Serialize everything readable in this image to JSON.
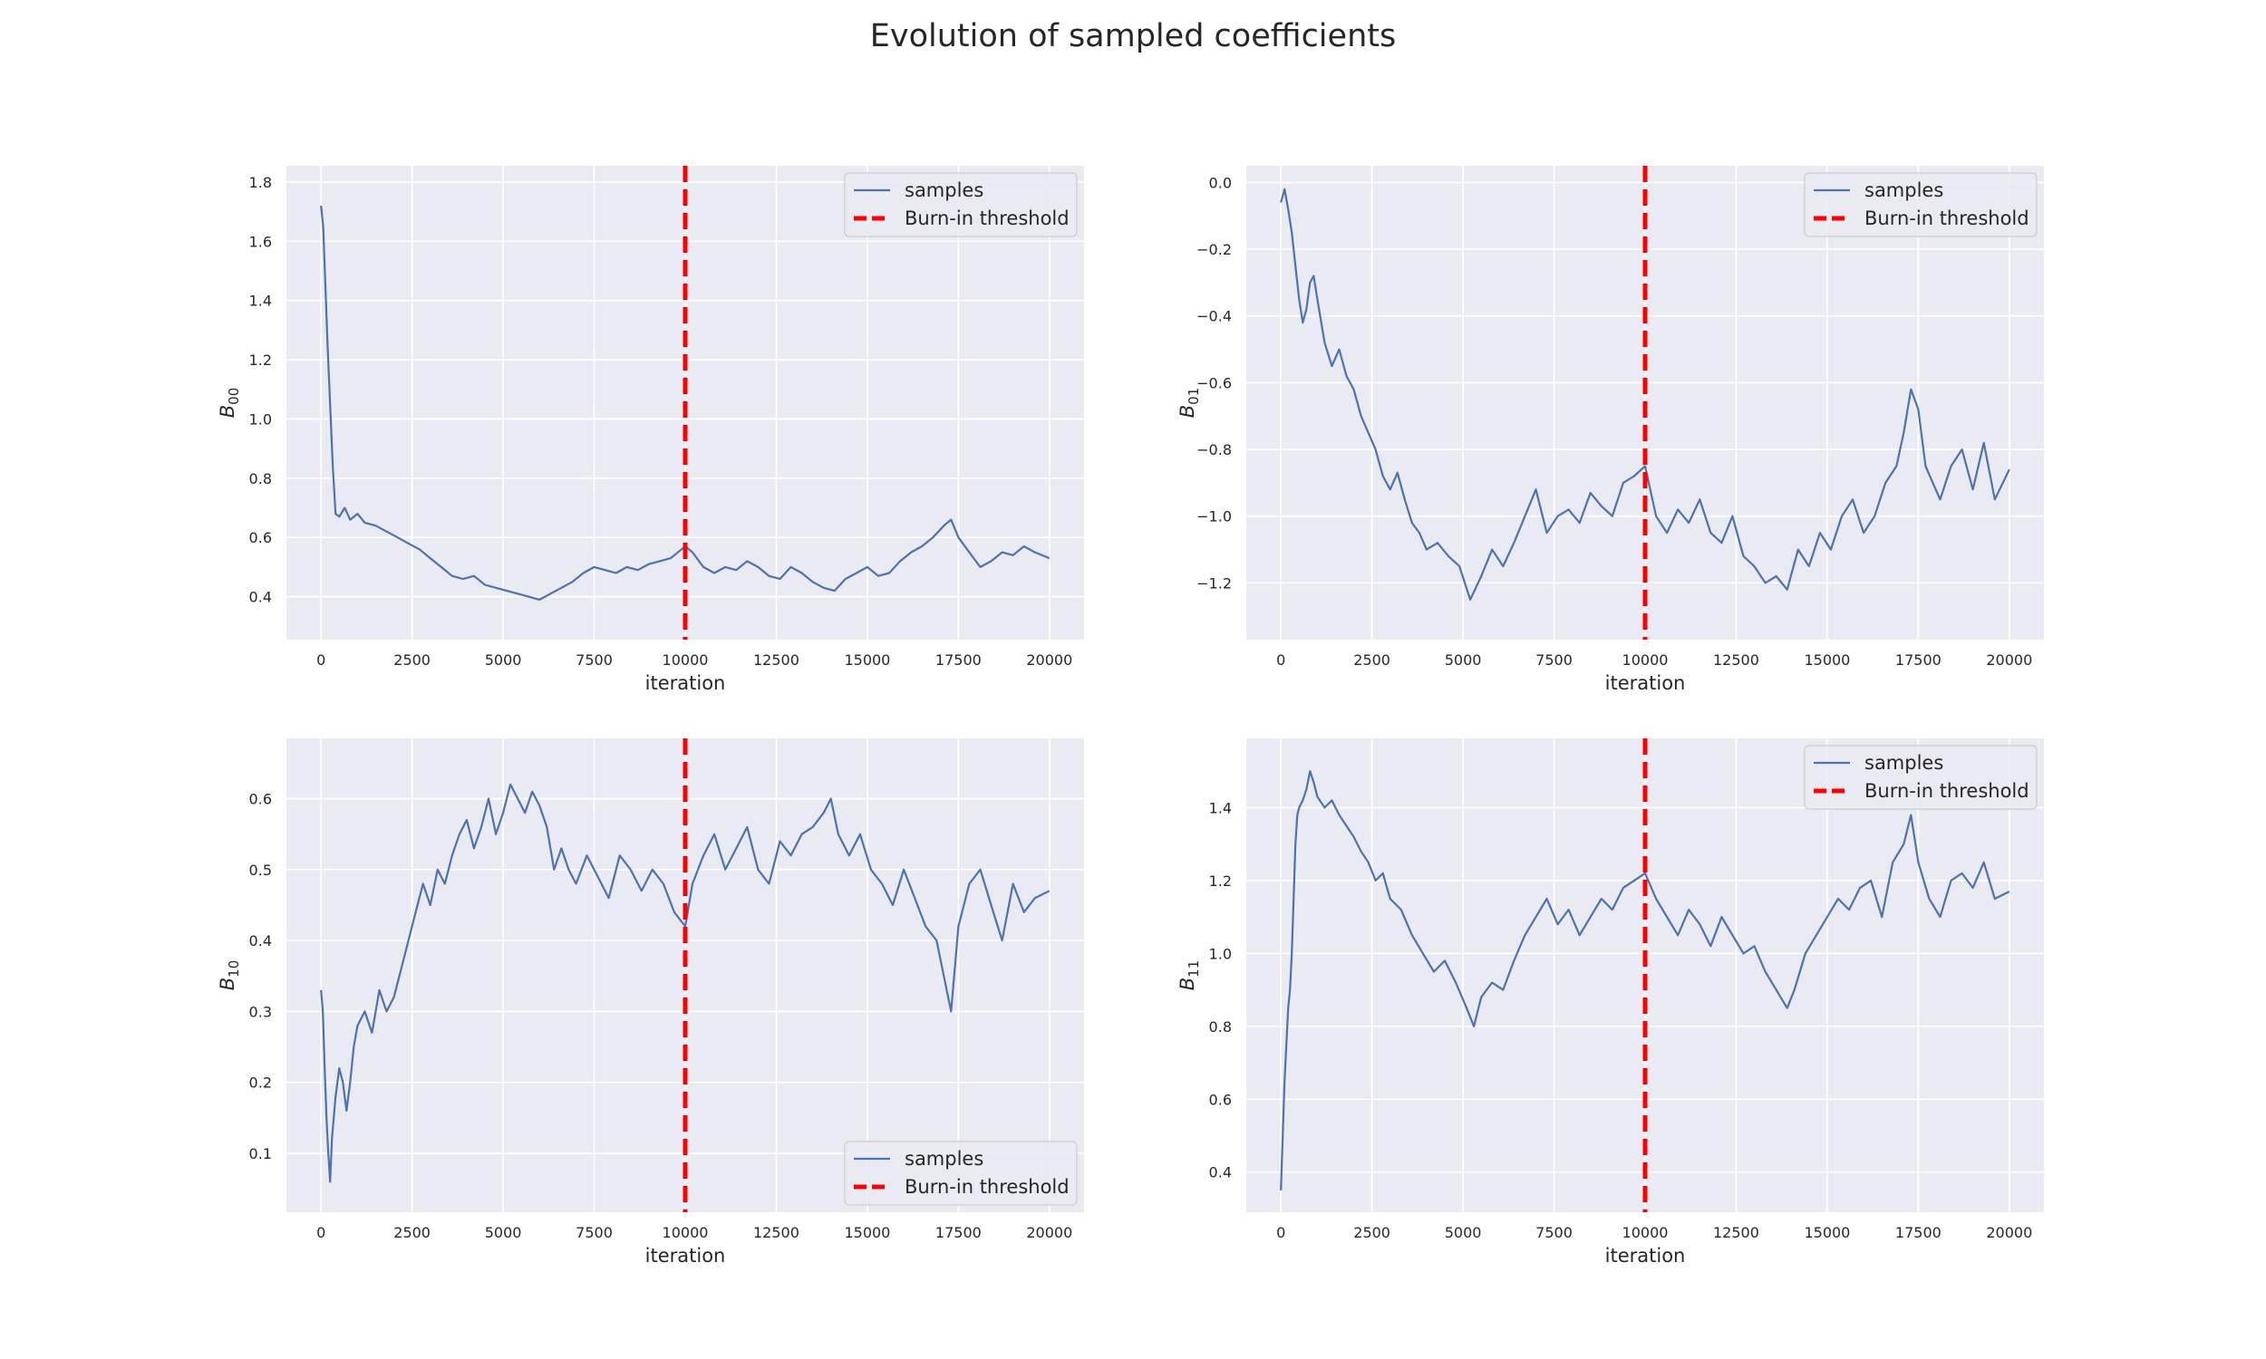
{
  "figure": {
    "title": "Evolution of sampled coefficients"
  },
  "colors": {
    "samples": "#4c72b0",
    "threshold": "#ff0000",
    "plot_bg": "#eaeaf2",
    "grid": "#ffffff"
  },
  "chart_data": [
    {
      "type": "line",
      "id": "B00",
      "ylabel": "B",
      "ylabel_sub": "00",
      "xlabel": "iteration",
      "xlim": [
        -950,
        20950
      ],
      "ylim": [
        0.255,
        1.855
      ],
      "xticks": [
        0,
        2500,
        5000,
        7500,
        10000,
        12500,
        15000,
        17500,
        20000
      ],
      "yticks": [
        0.4,
        0.6,
        0.8,
        1.0,
        1.2,
        1.4,
        1.6,
        1.8
      ],
      "ytick_decimals": 1,
      "grid": true,
      "legend_position": "upper right",
      "burn_in": 10000,
      "series": [
        {
          "name": "samples",
          "style": "solid",
          "x": [
            0,
            60,
            120,
            180,
            250,
            320,
            400,
            500,
            650,
            800,
            1000,
            1200,
            1500,
            1800,
            2100,
            2400,
            2700,
            3000,
            3300,
            3600,
            3900,
            4200,
            4500,
            4800,
            5100,
            5400,
            5700,
            6000,
            6300,
            6600,
            6900,
            7200,
            7500,
            7800,
            8100,
            8400,
            8700,
            9000,
            9300,
            9600,
            9900,
            10000,
            10200,
            10500,
            10800,
            11100,
            11400,
            11700,
            12000,
            12300,
            12600,
            12900,
            13200,
            13500,
            13800,
            14100,
            14400,
            14700,
            15000,
            15300,
            15600,
            15900,
            16200,
            16500,
            16800,
            17100,
            17300,
            17500,
            17800,
            18100,
            18400,
            18700,
            19000,
            19300,
            19600,
            20000
          ],
          "y": [
            1.72,
            1.65,
            1.45,
            1.25,
            1.05,
            0.85,
            0.68,
            0.67,
            0.7,
            0.66,
            0.68,
            0.65,
            0.64,
            0.62,
            0.6,
            0.58,
            0.56,
            0.53,
            0.5,
            0.47,
            0.46,
            0.47,
            0.44,
            0.43,
            0.42,
            0.41,
            0.4,
            0.39,
            0.41,
            0.43,
            0.45,
            0.48,
            0.5,
            0.49,
            0.48,
            0.5,
            0.49,
            0.51,
            0.52,
            0.53,
            0.56,
            0.57,
            0.55,
            0.5,
            0.48,
            0.5,
            0.49,
            0.52,
            0.5,
            0.47,
            0.46,
            0.5,
            0.48,
            0.45,
            0.43,
            0.42,
            0.46,
            0.48,
            0.5,
            0.47,
            0.48,
            0.52,
            0.55,
            0.57,
            0.6,
            0.64,
            0.66,
            0.6,
            0.55,
            0.5,
            0.52,
            0.55,
            0.54,
            0.57,
            0.55,
            0.53
          ]
        },
        {
          "name": "Burn-in threshold",
          "style": "dashed"
        }
      ]
    },
    {
      "type": "line",
      "id": "B01",
      "ylabel": "B",
      "ylabel_sub": "01",
      "xlabel": "iteration",
      "xlim": [
        -950,
        20950
      ],
      "ylim": [
        -1.37,
        0.05
      ],
      "xticks": [
        0,
        2500,
        5000,
        7500,
        10000,
        12500,
        15000,
        17500,
        20000
      ],
      "yticks": [
        -1.2,
        -1.0,
        -0.8,
        -0.6,
        -0.4,
        -0.2,
        0.0
      ],
      "ytick_decimals": 1,
      "grid": true,
      "legend_position": "upper right",
      "burn_in": 10000,
      "series": [
        {
          "name": "samples",
          "style": "solid",
          "x": [
            0,
            100,
            200,
            300,
            400,
            500,
            600,
            700,
            800,
            900,
            1000,
            1200,
            1400,
            1600,
            1800,
            2000,
            2200,
            2400,
            2600,
            2800,
            3000,
            3200,
            3400,
            3600,
            3800,
            4000,
            4300,
            4600,
            4900,
            5200,
            5500,
            5800,
            6100,
            6400,
            6700,
            7000,
            7300,
            7600,
            7900,
            8200,
            8500,
            8800,
            9100,
            9400,
            9700,
            10000,
            10300,
            10600,
            10900,
            11200,
            11500,
            11800,
            12100,
            12400,
            12700,
            13000,
            13300,
            13600,
            13900,
            14200,
            14500,
            14800,
            15100,
            15400,
            15700,
            16000,
            16300,
            16600,
            16900,
            17100,
            17300,
            17500,
            17700,
            17900,
            18100,
            18400,
            18700,
            19000,
            19300,
            19600,
            20000
          ],
          "y": [
            -0.06,
            -0.02,
            -0.08,
            -0.15,
            -0.25,
            -0.35,
            -0.42,
            -0.38,
            -0.3,
            -0.28,
            -0.35,
            -0.48,
            -0.55,
            -0.5,
            -0.58,
            -0.62,
            -0.7,
            -0.75,
            -0.8,
            -0.88,
            -0.92,
            -0.87,
            -0.95,
            -1.02,
            -1.05,
            -1.1,
            -1.08,
            -1.12,
            -1.15,
            -1.25,
            -1.18,
            -1.1,
            -1.15,
            -1.08,
            -1.0,
            -0.92,
            -1.05,
            -1.0,
            -0.98,
            -1.02,
            -0.93,
            -0.97,
            -1.0,
            -0.9,
            -0.88,
            -0.85,
            -1.0,
            -1.05,
            -0.98,
            -1.02,
            -0.95,
            -1.05,
            -1.08,
            -1.0,
            -1.12,
            -1.15,
            -1.2,
            -1.18,
            -1.22,
            -1.1,
            -1.15,
            -1.05,
            -1.1,
            -1.0,
            -0.95,
            -1.05,
            -1.0,
            -0.9,
            -0.85,
            -0.75,
            -0.62,
            -0.68,
            -0.85,
            -0.9,
            -0.95,
            -0.85,
            -0.8,
            -0.92,
            -0.78,
            -0.95,
            -0.86
          ]
        },
        {
          "name": "Burn-in threshold",
          "style": "dashed"
        }
      ]
    },
    {
      "type": "line",
      "id": "B10",
      "ylabel": "B",
      "ylabel_sub": "10",
      "xlabel": "iteration",
      "xlim": [
        -950,
        20950
      ],
      "ylim": [
        0.017,
        0.685
      ],
      "xticks": [
        0,
        2500,
        5000,
        7500,
        10000,
        12500,
        15000,
        17500,
        20000
      ],
      "yticks": [
        0.1,
        0.2,
        0.3,
        0.4,
        0.5,
        0.6
      ],
      "ytick_decimals": 1,
      "grid": true,
      "legend_position": "lower right",
      "burn_in": 10000,
      "series": [
        {
          "name": "samples",
          "style": "solid",
          "x": [
            0,
            50,
            100,
            150,
            200,
            250,
            300,
            400,
            500,
            600,
            700,
            800,
            900,
            1000,
            1200,
            1400,
            1600,
            1800,
            2000,
            2200,
            2400,
            2600,
            2800,
            3000,
            3200,
            3400,
            3600,
            3800,
            4000,
            4200,
            4400,
            4600,
            4800,
            5000,
            5200,
            5400,
            5600,
            5800,
            6000,
            6200,
            6400,
            6600,
            6800,
            7000,
            7300,
            7600,
            7900,
            8200,
            8500,
            8800,
            9100,
            9400,
            9700,
            10000,
            10200,
            10500,
            10800,
            11100,
            11400,
            11700,
            12000,
            12300,
            12600,
            12900,
            13200,
            13500,
            13800,
            14000,
            14200,
            14500,
            14800,
            15100,
            15400,
            15700,
            16000,
            16300,
            16600,
            16900,
            17100,
            17300,
            17500,
            17800,
            18100,
            18400,
            18700,
            19000,
            19300,
            19600,
            20000
          ],
          "y": [
            0.33,
            0.3,
            0.22,
            0.15,
            0.1,
            0.06,
            0.12,
            0.18,
            0.22,
            0.2,
            0.16,
            0.2,
            0.25,
            0.28,
            0.3,
            0.27,
            0.33,
            0.3,
            0.32,
            0.36,
            0.4,
            0.44,
            0.48,
            0.45,
            0.5,
            0.48,
            0.52,
            0.55,
            0.57,
            0.53,
            0.56,
            0.6,
            0.55,
            0.58,
            0.62,
            0.6,
            0.58,
            0.61,
            0.59,
            0.56,
            0.5,
            0.53,
            0.5,
            0.48,
            0.52,
            0.49,
            0.46,
            0.52,
            0.5,
            0.47,
            0.5,
            0.48,
            0.44,
            0.42,
            0.48,
            0.52,
            0.55,
            0.5,
            0.53,
            0.56,
            0.5,
            0.48,
            0.54,
            0.52,
            0.55,
            0.56,
            0.58,
            0.6,
            0.55,
            0.52,
            0.55,
            0.5,
            0.48,
            0.45,
            0.5,
            0.46,
            0.42,
            0.4,
            0.35,
            0.3,
            0.42,
            0.48,
            0.5,
            0.45,
            0.4,
            0.48,
            0.44,
            0.46,
            0.47
          ]
        },
        {
          "name": "Burn-in threshold",
          "style": "dashed"
        }
      ]
    },
    {
      "type": "line",
      "id": "B11",
      "ylabel": "B",
      "ylabel_sub": "11",
      "xlabel": "iteration",
      "xlim": [
        -950,
        20950
      ],
      "ylim": [
        0.29,
        1.59
      ],
      "xticks": [
        0,
        2500,
        5000,
        7500,
        10000,
        12500,
        15000,
        17500,
        20000
      ],
      "yticks": [
        0.4,
        0.6,
        0.8,
        1.0,
        1.2,
        1.4
      ],
      "ytick_decimals": 1,
      "grid": true,
      "legend_position": "upper right",
      "burn_in": 10000,
      "series": [
        {
          "name": "samples",
          "style": "solid",
          "x": [
            0,
            50,
            100,
            150,
            200,
            250,
            300,
            350,
            400,
            450,
            500,
            600,
            700,
            800,
            900,
            1000,
            1200,
            1400,
            1600,
            1800,
            2000,
            2200,
            2400,
            2600,
            2800,
            3000,
            3300,
            3600,
            3900,
            4200,
            4500,
            4800,
            5100,
            5300,
            5500,
            5800,
            6100,
            6400,
            6700,
            7000,
            7300,
            7600,
            7900,
            8200,
            8500,
            8800,
            9100,
            9400,
            9700,
            10000,
            10300,
            10600,
            10900,
            11200,
            11500,
            11800,
            12100,
            12400,
            12700,
            13000,
            13300,
            13600,
            13900,
            14100,
            14400,
            14700,
            15000,
            15300,
            15600,
            15900,
            16200,
            16500,
            16800,
            17100,
            17300,
            17500,
            17800,
            18100,
            18400,
            18700,
            19000,
            19300,
            19600,
            20000
          ],
          "y": [
            0.35,
            0.5,
            0.65,
            0.75,
            0.85,
            0.9,
            1.0,
            1.15,
            1.3,
            1.38,
            1.4,
            1.42,
            1.45,
            1.5,
            1.47,
            1.43,
            1.4,
            1.42,
            1.38,
            1.35,
            1.32,
            1.28,
            1.25,
            1.2,
            1.22,
            1.15,
            1.12,
            1.05,
            1.0,
            0.95,
            0.98,
            0.92,
            0.85,
            0.8,
            0.88,
            0.92,
            0.9,
            0.98,
            1.05,
            1.1,
            1.15,
            1.08,
            1.12,
            1.05,
            1.1,
            1.15,
            1.12,
            1.18,
            1.2,
            1.22,
            1.15,
            1.1,
            1.05,
            1.12,
            1.08,
            1.02,
            1.1,
            1.05,
            1.0,
            1.02,
            0.95,
            0.9,
            0.85,
            0.9,
            1.0,
            1.05,
            1.1,
            1.15,
            1.12,
            1.18,
            1.2,
            1.1,
            1.25,
            1.3,
            1.38,
            1.25,
            1.15,
            1.1,
            1.2,
            1.22,
            1.18,
            1.25,
            1.15,
            1.17
          ]
        },
        {
          "name": "Burn-in threshold",
          "style": "dashed"
        }
      ]
    }
  ]
}
